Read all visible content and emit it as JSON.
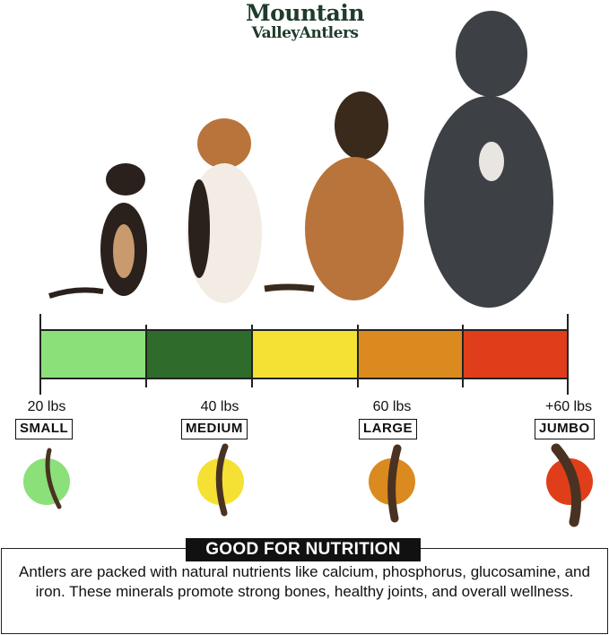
{
  "brand": {
    "line1": "Mountain",
    "line2": "ValleyAntlers"
  },
  "scale": {
    "segments": [
      {
        "color": "#8ce07a"
      },
      {
        "color": "#2f6b2a"
      },
      {
        "color": "#f5e034"
      },
      {
        "color": "#da8a1e"
      },
      {
        "color": "#e03e1a"
      }
    ],
    "sizes": [
      {
        "weight": "20 lbs",
        "label": "SMALL",
        "circle_color": "#8ce07a"
      },
      {
        "weight": "40 lbs",
        "label": "MEDIUM",
        "circle_color": "#f5e034"
      },
      {
        "weight": "60 lbs",
        "label": "LARGE",
        "circle_color": "#da8a1e"
      },
      {
        "weight": "+60 lbs",
        "label": "JUMBO",
        "circle_color": "#e03e1a"
      }
    ]
  },
  "info": {
    "title": "GOOD FOR NUTRITION",
    "body": "Antlers are packed with natural nutrients like calcium, phosphorus, glucosamine, and iron. These minerals promote strong bones, healthy joints, and overall wellness."
  }
}
